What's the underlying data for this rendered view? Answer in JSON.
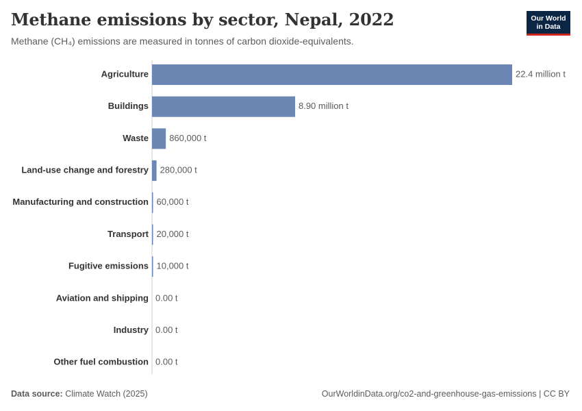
{
  "header": {
    "title": "Methane emissions by sector, Nepal, 2022",
    "subtitle": "Methane (CH₄) emissions are measured in tonnes of carbon dioxide-equivalents."
  },
  "logo": {
    "line1": "Our World",
    "line2": "in Data"
  },
  "footer": {
    "source_label": "Data source:",
    "source_value": "Climate Watch (2025)",
    "url": "OurWorldinData.org/co2-and-greenhouse-gas-emissions | CC BY"
  },
  "colors": {
    "bar": "#6d87b4",
    "axis": "#cccccc",
    "label": "#333333",
    "value": "#5b5b5b",
    "logo_bg": "#0b2545",
    "logo_accent": "#ce261e"
  },
  "chart_data": {
    "type": "bar",
    "orientation": "horizontal",
    "categories": [
      "Agriculture",
      "Buildings",
      "Waste",
      "Land-use change and forestry",
      "Manufacturing and construction",
      "Transport",
      "Fugitive emissions",
      "Aviation and shipping",
      "Industry",
      "Other fuel combustion"
    ],
    "values": [
      22400000,
      8900000,
      860000,
      280000,
      60000,
      20000,
      10000,
      0,
      0,
      0
    ],
    "labels": [
      "22.4 million t",
      "8.90 million t",
      "860,000 t",
      "280,000 t",
      "60,000 t",
      "20,000 t",
      "10,000 t",
      "0.00 t",
      "0.00 t",
      "0.00 t"
    ],
    "unit": "tonnes CO₂-equivalents",
    "grid": false
  }
}
